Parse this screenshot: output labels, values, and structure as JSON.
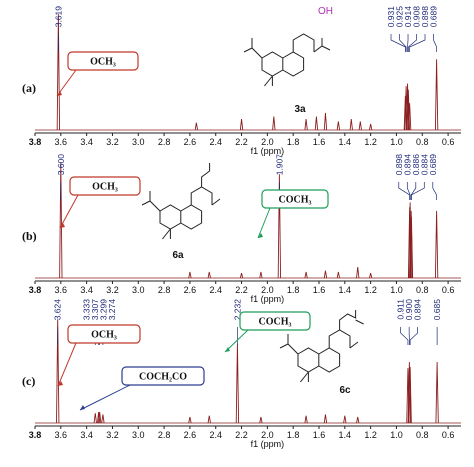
{
  "chart_data": [
    {
      "type": "nmr",
      "panel_label": "(a)",
      "compound": "3a",
      "substituent": "OH",
      "xlabel": "f1 (ppm)",
      "color": "#8b1f1f",
      "xlim": [
        3.8,
        0.5
      ],
      "xticks": [
        3.8,
        3.6,
        3.4,
        3.2,
        {
          "value": 3,
          "label": "3.0"
        },
        2.8,
        2.6,
        2.4,
        2.2,
        {
          "value": 2,
          "label": "2.0"
        },
        1.8,
        1.6,
        1.4,
        1.2,
        {
          "value": 1,
          "label": "1.0"
        },
        0.8,
        0.6
      ],
      "peaks": {
        "x": [
          3.619,
          2.55,
          2.2,
          1.95,
          1.7,
          1.62,
          1.55,
          1.45,
          1.35,
          1.28,
          1.2,
          0.931,
          0.925,
          0.914,
          0.908,
          0.898,
          0.689
        ],
        "heights": [
          95,
          6,
          9,
          11,
          9,
          11,
          14,
          7,
          9,
          7,
          5,
          28,
          36,
          38,
          33,
          22,
          58
        ]
      },
      "peak_labels": [
        3.619,
        0.931,
        0.925,
        0.914,
        0.908,
        0.898,
        0.689
      ],
      "annotations": [
        {
          "text": "OCH₃",
          "color": "#c0392b"
        }
      ]
    },
    {
      "type": "nmr",
      "panel_label": "(b)",
      "compound": "6a",
      "xlabel": "f1 (ppm)",
      "color": "#8b1f1f",
      "xlim": [
        3.8,
        0.5
      ],
      "xticks": [
        3.8,
        3.6,
        3.4,
        3.2,
        {
          "value": 3,
          "label": "3.0"
        },
        2.8,
        2.6,
        2.4,
        2.2,
        {
          "value": 2,
          "label": "2.0"
        },
        1.8,
        1.6,
        1.4,
        1.2,
        {
          "value": 1,
          "label": "1.0"
        },
        0.8,
        0.6
      ],
      "peaks": {
        "x": [
          3.6,
          2.6,
          2.45,
          2.2,
          2.05,
          1.907,
          1.7,
          1.55,
          1.45,
          1.3,
          1.2,
          0.898,
          0.894,
          0.886,
          0.884,
          0.689
        ],
        "heights": [
          95,
          5,
          5,
          4,
          5,
          85,
          5,
          6,
          5,
          9,
          4,
          58,
          62,
          55,
          50,
          55
        ]
      },
      "peak_labels": [
        {
          "value": 3.6,
          "label": "3.600"
        },
        1.907,
        0.898,
        0.894,
        0.886,
        0.884,
        0.689
      ],
      "annotations": [
        {
          "text": "OCH₃",
          "color": "#c0392b"
        },
        {
          "text": "COCH₃",
          "color": "#1e9e5a"
        }
      ]
    },
    {
      "type": "nmr",
      "panel_label": "(c)",
      "compound": "6c",
      "xlabel": "f1 (ppm)",
      "color": "#8b1f1f",
      "xlim": [
        3.8,
        0.5
      ],
      "xticks": [
        3.8,
        3.6,
        3.4,
        3.2,
        {
          "value": 3,
          "label": "3.0"
        },
        2.8,
        2.6,
        2.4,
        2.2,
        {
          "value": 2,
          "label": "2.0"
        },
        1.8,
        1.6,
        1.4,
        1.2,
        {
          "value": 1,
          "label": "1.0"
        },
        0.8,
        0.6
      ],
      "peaks": {
        "x": [
          3.624,
          3.333,
          3.307,
          3.299,
          3.274,
          2.6,
          2.45,
          2.232,
          2.05,
          1.7,
          1.55,
          1.4,
          1.3,
          0.911,
          0.9,
          0.894,
          0.685
        ],
        "heights": [
          85,
          8,
          9,
          9,
          7,
          5,
          6,
          65,
          5,
          6,
          7,
          6,
          5,
          45,
          50,
          46,
          50
        ]
      },
      "peak_labels": [
        3.624,
        3.333,
        3.307,
        3.299,
        3.274,
        2.232,
        0.911,
        {
          "value": 0.9,
          "label": "0.900"
        },
        0.894,
        0.685
      ],
      "annotations": [
        {
          "text": "OCH₃",
          "color": "#c0392b"
        },
        {
          "text": "COCH₃",
          "color": "#1e9e5a"
        },
        {
          "text": "COCH₂CO",
          "color": "#2c3e8f"
        }
      ]
    }
  ]
}
